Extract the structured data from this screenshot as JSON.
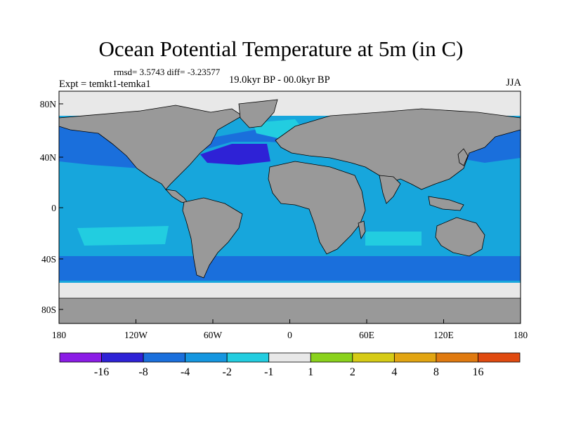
{
  "title": "Ocean Potential Temperature at 5m (in C)",
  "stats": "rmsd= 3.5743 diff= -3.23577",
  "experiment": "Expt = temkt1-temka1",
  "period": "19.0kyr BP - 00.0kyr BP",
  "season": "JJA",
  "lon_ticks": [
    "180",
    "120W",
    "60W",
    "0",
    "60E",
    "120E",
    "180"
  ],
  "lat_ticks": [
    "80N",
    "40N",
    "0",
    "40S",
    "80S"
  ],
  "colorbar": {
    "colors": [
      "#8b1ce6",
      "#2e22d6",
      "#1a6fdc",
      "#1596e0",
      "#22cde0",
      "#e8e8e8",
      "#8ad21c",
      "#d6cb16",
      "#e2a512",
      "#e07a10",
      "#e04a10"
    ],
    "labels": [
      "-16",
      "-8",
      "-4",
      "-2",
      "-1",
      "1",
      "2",
      "4",
      "8",
      "16"
    ]
  },
  "colors": {
    "land": "#999999",
    "ocean_main": "#17a6dc",
    "ice": "#e8e8e8"
  }
}
